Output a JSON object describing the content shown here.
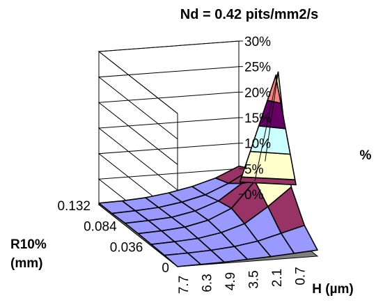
{
  "chart_data": {
    "type": "surface",
    "title": "Nd = 0.42 pits/mm2/s",
    "z_axis": {
      "label": "%",
      "ticks": [
        "0%",
        "5%",
        "10%",
        "15%",
        "20%",
        "25%",
        "30%"
      ],
      "range": [
        0,
        30
      ]
    },
    "y_axis": {
      "label_line1": "R10%",
      "label_line2": "(mm)",
      "ticks": [
        "0.132",
        "0.084",
        "0.036",
        "0"
      ]
    },
    "x_axis": {
      "label": "H (µm)",
      "ticks": [
        "7.7",
        "6.3",
        "4.9",
        "3.5",
        "2.1",
        "0.7"
      ]
    },
    "series": [
      {
        "R10": "0.132",
        "values": [
          0.3,
          0.4,
          0.7,
          1.3,
          2.2,
          3.5,
          5.5
        ]
      },
      {
        "R10": "0.108",
        "values": [
          0.3,
          0.5,
          0.8,
          1.5,
          2.6,
          4.5,
          7.0
        ]
      },
      {
        "R10": "0.084",
        "values": [
          0.4,
          0.6,
          0.9,
          1.8,
          3.4,
          6.5,
          10.5
        ]
      },
      {
        "R10": "0.060",
        "values": [
          0.4,
          0.6,
          1.0,
          2.0,
          4.0,
          9.0,
          30.0
        ]
      },
      {
        "R10": "0.036",
        "values": [
          0.3,
          0.5,
          0.8,
          1.6,
          3.0,
          6.0,
          9.5
        ]
      },
      {
        "R10": "0.018",
        "values": [
          0.2,
          0.3,
          0.5,
          0.9,
          1.6,
          2.8,
          4.0
        ]
      },
      {
        "R10": "0",
        "values": [
          0.0,
          0.1,
          0.2,
          0.4,
          0.6,
          0.9,
          1.2
        ]
      }
    ],
    "band_colors": [
      "#9999ff",
      "#993366",
      "#ffffcc",
      "#ccffff",
      "#660066",
      "#ff8080"
    ],
    "floor_color": "#808080",
    "grid": true
  }
}
